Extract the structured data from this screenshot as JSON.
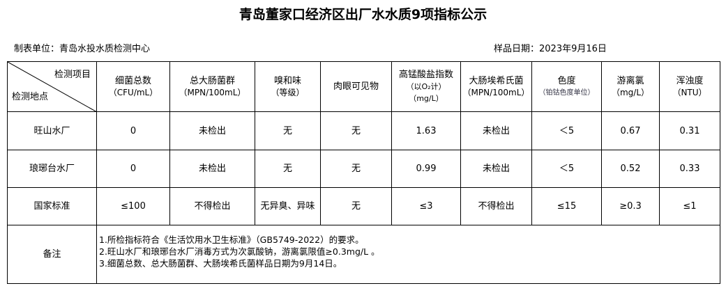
{
  "title": "青岛董家口经济区出厂水水质9项指标公示",
  "unit": "制表单位：青岛水投水质检测中心",
  "date": "样品日期：2023年9月16日",
  "corner": {
    "top": "检测项目",
    "bottom": "检测地点"
  },
  "headers": [
    {
      "name": "细菌总数",
      "unit": "（CFU/mL）"
    },
    {
      "name": "总大肠菌群",
      "unit": "（MPN/100mL）"
    },
    {
      "name": "嗅和味",
      "unit": "（等级）"
    },
    {
      "name": "肉眼可见物",
      "unit": ""
    },
    {
      "name": "高锰酸盐指数",
      "unit": "（以O₂计）",
      "unit2": "（mg/L）"
    },
    {
      "name": "大肠埃希氏菌",
      "unit": "（MPN/100mL）"
    },
    {
      "name": "色度",
      "unit": "（铂钴色度单位）"
    },
    {
      "name": "游离氯",
      "unit": "（mg/L）"
    },
    {
      "name": "浑浊度",
      "unit": "（NTU）"
    }
  ],
  "rows": [
    {
      "site": "旺山水厂",
      "values": [
        "0",
        "未检出",
        "无",
        "无",
        "1.63",
        "未检出",
        "＜5",
        "0.67",
        "0.31"
      ]
    },
    {
      "site": "琅琊台水厂",
      "values": [
        "0",
        "未检出",
        "无",
        "无",
        "0.99",
        "未检出",
        "＜5",
        "0.52",
        "0.33"
      ]
    },
    {
      "site": "国家标准",
      "values": [
        "≤100",
        "不得检出",
        "无异臭、异味",
        "无",
        "≤3",
        "不得检出",
        "≤15",
        "≥0.3",
        "≤1"
      ]
    }
  ],
  "remarks": {
    "label": "备注",
    "lines": [
      "1.所检指标符合《生活饮用水卫生标准》（GB5749-2022）的要求。",
      "2.旺山水厂和琅琊台水厂消毒方式为次氯酸钠，游离氯限值≥0.3mg/L 。",
      "3.细菌总数、总大肠菌群、大肠埃希氏菌样品日期为9月14日。"
    ]
  }
}
